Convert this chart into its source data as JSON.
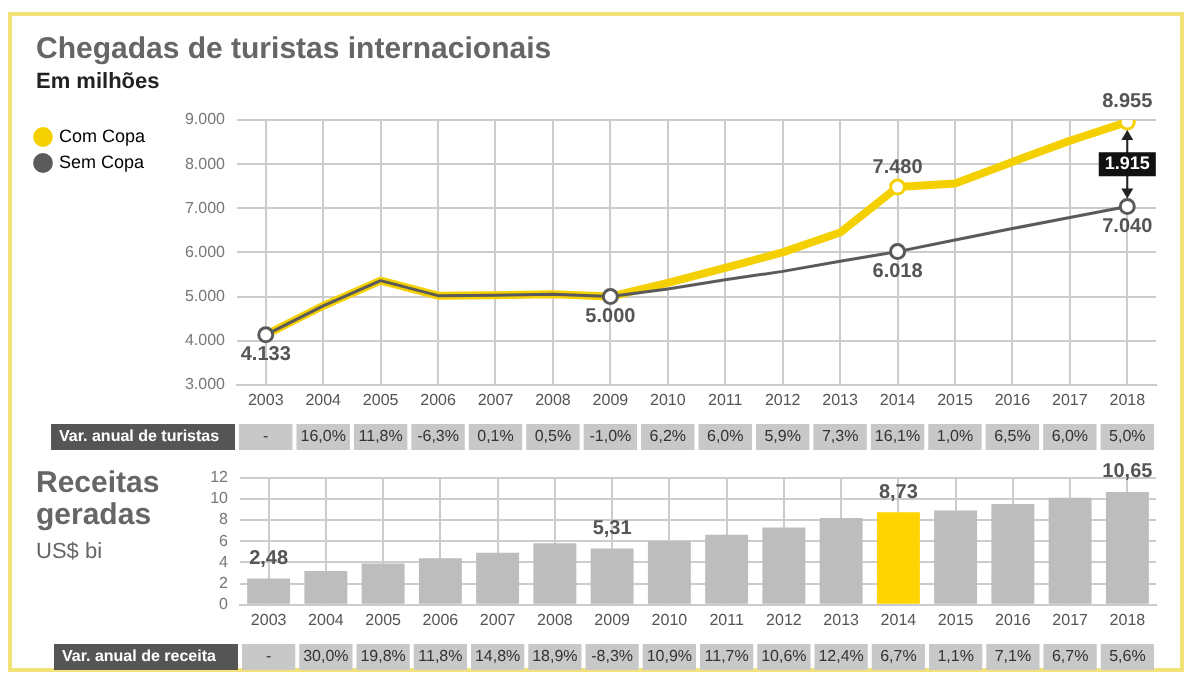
{
  "chart_data": [
    {
      "type": "line",
      "title": "Chegadas de turistas internacionais",
      "subtitle": "Em milhões",
      "categories": [
        "2003",
        "2004",
        "2005",
        "2006",
        "2007",
        "2008",
        "2009",
        "2010",
        "2011",
        "2012",
        "2013",
        "2014",
        "2015",
        "2016",
        "2017",
        "2018"
      ],
      "series": [
        {
          "name": "Com Copa",
          "color": "#f5d000",
          "values": [
            4133,
            4790,
            5360,
            5020,
            5030,
            5050,
            5000,
            5310,
            5650,
            6000,
            6450,
            7480,
            7560,
            8050,
            8530,
            8955
          ],
          "value_labels": [
            null,
            null,
            null,
            null,
            null,
            null,
            null,
            null,
            null,
            null,
            null,
            "7.480",
            null,
            null,
            null,
            "8.955"
          ]
        },
        {
          "name": "Sem Copa",
          "color": "#5a5a5a",
          "values": [
            4133,
            4790,
            5360,
            5020,
            5030,
            5050,
            5000,
            5170,
            5380,
            5570,
            5800,
            6018,
            6280,
            6540,
            6790,
            7040
          ],
          "value_labels": [
            "4.133",
            null,
            null,
            null,
            null,
            null,
            "5.000",
            null,
            null,
            null,
            null,
            "6.018",
            null,
            null,
            null,
            "7.040"
          ]
        }
      ],
      "ylim": [
        3000,
        9000
      ],
      "yticks": [
        {
          "value": 3000,
          "label": "3.000"
        },
        {
          "value": 4000,
          "label": "4.000"
        },
        {
          "value": 5000,
          "label": "5.000"
        },
        {
          "value": 6000,
          "label": "6.000"
        },
        {
          "value": 7000,
          "label": "7.000"
        },
        {
          "value": 8000,
          "label": "8.000"
        },
        {
          "value": 9000,
          "label": "9.000"
        }
      ],
      "grid": true,
      "legend": "left",
      "line_style": "solid",
      "annotations": [
        {
          "text": "1.915",
          "x": "2018",
          "y": 7997.5
        },
        "Var. anual de turistas",
        "-",
        "16,0%",
        "11,8%",
        "-6,3%",
        "0,1%",
        "0,5%",
        "-1,0%",
        "6,2%",
        "6,0%",
        "5,9%",
        "7,3%",
        "16,1%",
        "1,0%",
        "6,5%",
        "6,0%",
        "5,0%"
      ]
    },
    {
      "type": "bar",
      "title": "Receitas geradas",
      "subtitle": "US$ bi",
      "categories": [
        "2003",
        "2004",
        "2005",
        "2006",
        "2007",
        "2008",
        "2009",
        "2010",
        "2011",
        "2012",
        "2013",
        "2014",
        "2015",
        "2016",
        "2017",
        "2018"
      ],
      "values": [
        2.48,
        3.2,
        3.9,
        4.4,
        4.9,
        5.8,
        5.31,
        6.0,
        6.6,
        7.3,
        8.2,
        8.73,
        8.9,
        9.5,
        10.1,
        10.65
      ],
      "colors": [
        "#bdbdbd",
        "#bdbdbd",
        "#bdbdbd",
        "#bdbdbd",
        "#bdbdbd",
        "#bdbdbd",
        "#bdbdbd",
        "#bdbdbd",
        "#bdbdbd",
        "#bdbdbd",
        "#bdbdbd",
        "#ffd400",
        "#bdbdbd",
        "#bdbdbd",
        "#bdbdbd",
        "#bdbdbd"
      ],
      "value_labels": [
        "2,48",
        null,
        null,
        null,
        null,
        null,
        "5,31",
        null,
        null,
        null,
        null,
        "8,73",
        null,
        null,
        null,
        "10,65"
      ],
      "ylim": [
        0,
        12
      ],
      "yticks": [
        0,
        2,
        4,
        6,
        8,
        10,
        12
      ],
      "grid": true,
      "annotations": [
        "Var. anual de receita",
        "-",
        "30,0%",
        "19,8%",
        "11,8%",
        "14,8%",
        "18,9%",
        "-8,3%",
        "10,9%",
        "11,7%",
        "10,6%",
        "12,4%",
        "6,7%",
        "1,1%",
        "7,1%",
        "6,7%",
        "5,6%"
      ]
    }
  ]
}
